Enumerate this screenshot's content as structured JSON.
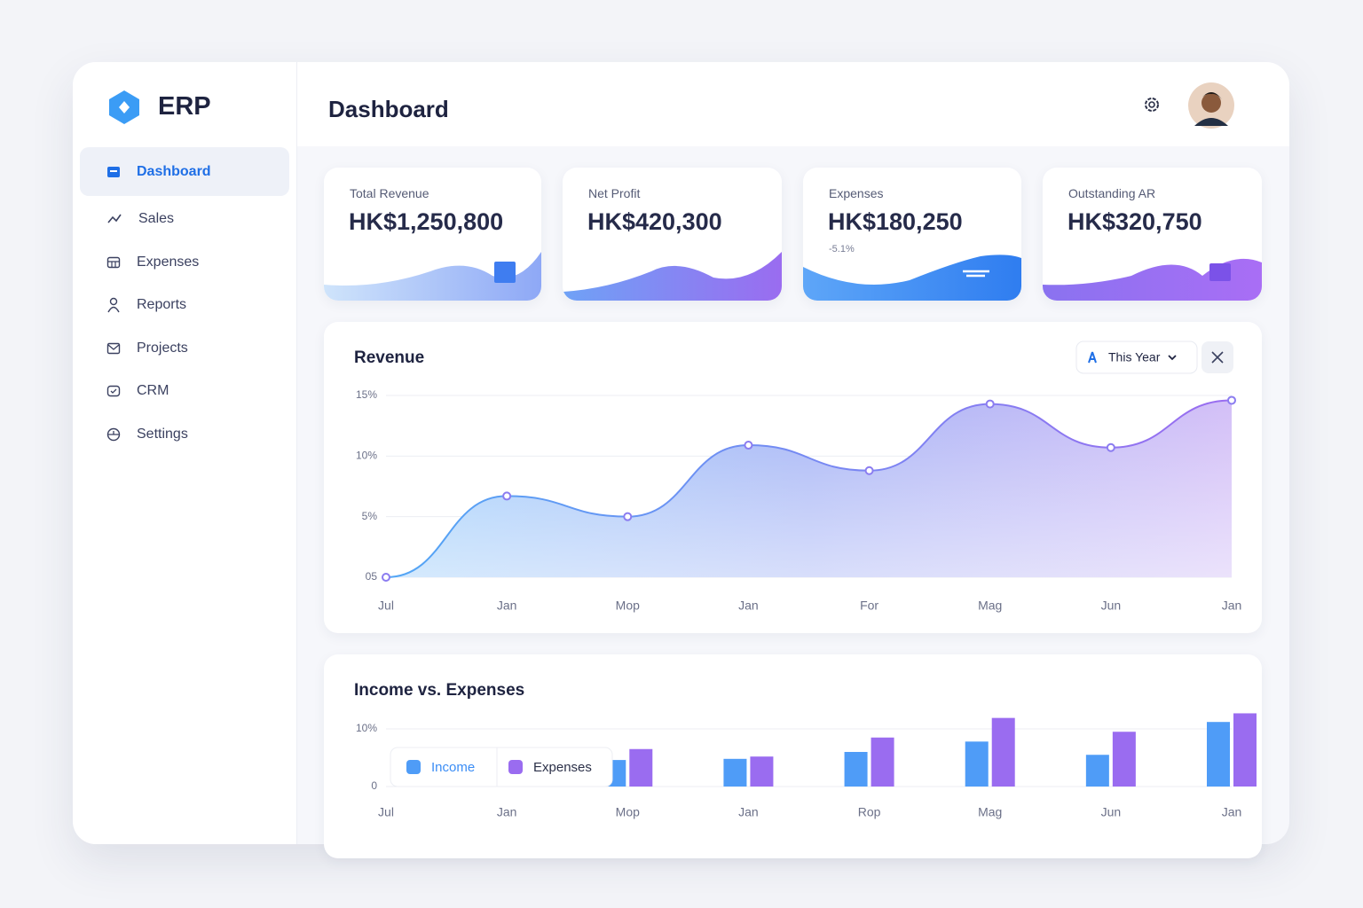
{
  "sidebar": {
    "brand": "ERP",
    "nav": [
      "Dashboard",
      "Sales",
      "Expenses",
      "Reports",
      "Projects",
      "CRM",
      "Settings"
    ]
  },
  "header": {
    "title": "Dashboard"
  },
  "cards": [
    {
      "label": "Total Revenue",
      "value": "HK$1,250,800"
    },
    {
      "label": "Net Profit",
      "value": "HK$420,300"
    },
    {
      "label": "Expenses",
      "value": "HK$180,250",
      "change": "-5.1%"
    },
    {
      "label": "Outstanding AR",
      "value": "HK$320,750"
    }
  ],
  "chart_data": [
    {
      "type": "area",
      "title": "Revenue",
      "filter": "This Year",
      "categories": [
        "Jul",
        "Jan",
        "Mop",
        "Jan",
        "For",
        "Mag",
        "Jun",
        "Jan"
      ],
      "values": [
        0,
        6.7,
        5.0,
        10.9,
        8.8,
        14.3,
        10.7,
        14.6
      ],
      "color": "#8b7cf0",
      "ylim": [
        0,
        15
      ],
      "yticks": [
        {
          "value": 0,
          "label": "05"
        },
        {
          "value": 5,
          "label": "5%"
        },
        {
          "value": 10,
          "label": "10%"
        },
        {
          "value": 15,
          "label": "15%"
        }
      ],
      "grid": true
    },
    {
      "type": "bar",
      "title": "Income vs. Expenses",
      "categories": [
        "Jul",
        "Jan",
        "Mop",
        "Jan",
        "Rop",
        "Mag",
        "Jun",
        "Jan"
      ],
      "series": [
        {
          "name": "Income",
          "color": "#4f9cf7",
          "values": [
            null,
            null,
            4.6,
            4.8,
            6.0,
            7.8,
            5.5,
            11.2
          ]
        },
        {
          "name": "Expenses",
          "color": "#9a6cf0",
          "values": [
            null,
            null,
            6.5,
            5.2,
            8.5,
            11.9,
            9.5,
            12.7
          ]
        }
      ],
      "ylim": [
        0,
        13
      ],
      "yticks": [
        0,
        {
          "value": 10,
          "label": "10%"
        }
      ],
      "grid": true
    }
  ]
}
